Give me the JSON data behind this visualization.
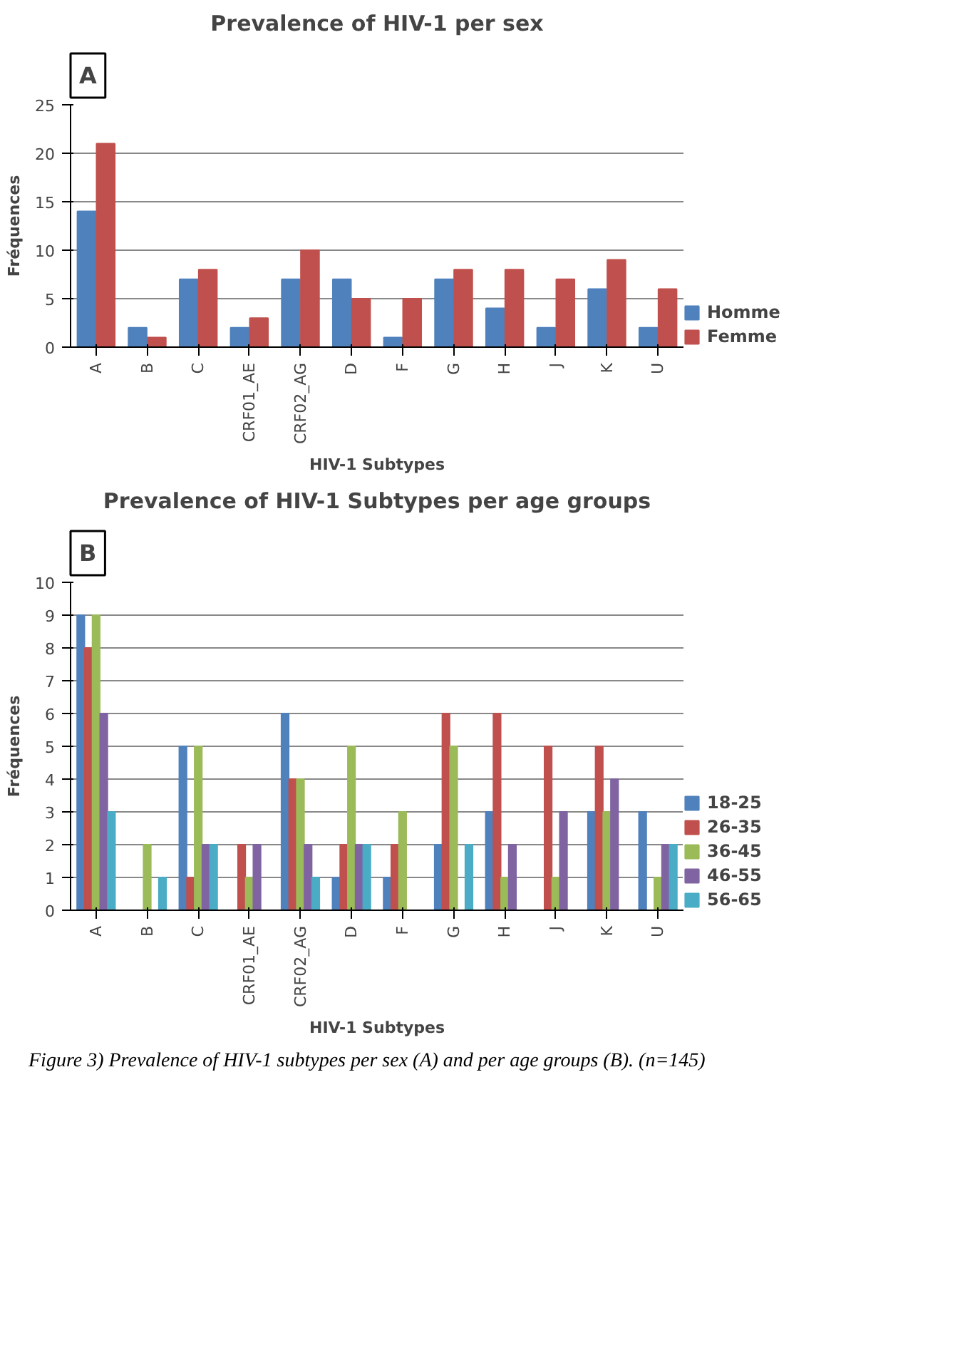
{
  "chart_data": [
    {
      "type": "bar",
      "title": "Prevalence of HIV-1 per sex",
      "xlabel": "HIV-1 Subtypes",
      "ylabel": "Fréquences",
      "categories": [
        "A",
        "B",
        "C",
        "CRF01_AE",
        "CRF02_AG",
        "D",
        "F",
        "G",
        "H",
        "J",
        "K",
        "U"
      ],
      "series": [
        {
          "name": "Homme",
          "color": "#4f81bd",
          "values": [
            14,
            2,
            7,
            2,
            7,
            7,
            1,
            7,
            4,
            2,
            6,
            2
          ]
        },
        {
          "name": "Femme",
          "color": "#c0504d",
          "values": [
            21,
            1,
            8,
            3,
            10,
            5,
            5,
            8,
            8,
            7,
            9,
            6
          ]
        }
      ],
      "ylim": [
        0,
        25
      ],
      "yticks": [
        0,
        5,
        10,
        15,
        20,
        25
      ],
      "grid": "y",
      "legend": "right",
      "annotations": [
        "A"
      ]
    },
    {
      "type": "bar",
      "title": "Prevalence of HIV-1 Subtypes per age groups",
      "xlabel": "HIV-1 Subtypes",
      "ylabel": "Fréquences",
      "categories": [
        "A",
        "B",
        "C",
        "CRF01_AE",
        "CRF02_AG",
        "D",
        "F",
        "G",
        "H",
        "J",
        "K",
        "U"
      ],
      "series": [
        {
          "name": "18-25",
          "color": "#4f81bd",
          "values": [
            9,
            0,
            5,
            0,
            6,
            1,
            1,
            2,
            3,
            0,
            3,
            3
          ]
        },
        {
          "name": "26-35",
          "color": "#c0504d",
          "values": [
            8,
            0,
            1,
            2,
            4,
            2,
            2,
            6,
            6,
            5,
            5,
            0
          ]
        },
        {
          "name": "36-45",
          "color": "#9bbb59",
          "values": [
            9,
            2,
            5,
            1,
            4,
            5,
            3,
            5,
            1,
            1,
            3,
            1
          ]
        },
        {
          "name": "46-55",
          "color": "#8064a2",
          "values": [
            6,
            0,
            2,
            2,
            2,
            2,
            0,
            0,
            2,
            3,
            4,
            2
          ]
        },
        {
          "name": "56-65",
          "color": "#4bacc6",
          "values": [
            3,
            1,
            2,
            0,
            1,
            2,
            0,
            2,
            0,
            0,
            0,
            2
          ]
        }
      ],
      "ylim": [
        0,
        10
      ],
      "yticks": [
        0,
        1,
        2,
        3,
        4,
        5,
        6,
        7,
        8,
        9,
        10
      ],
      "grid": "y",
      "legend": "right",
      "annotations": [
        "B",
        "Figure 3) Prevalence of HIV-1 subtypes per sex (A) and per age groups (B). (n=145)"
      ]
    }
  ]
}
